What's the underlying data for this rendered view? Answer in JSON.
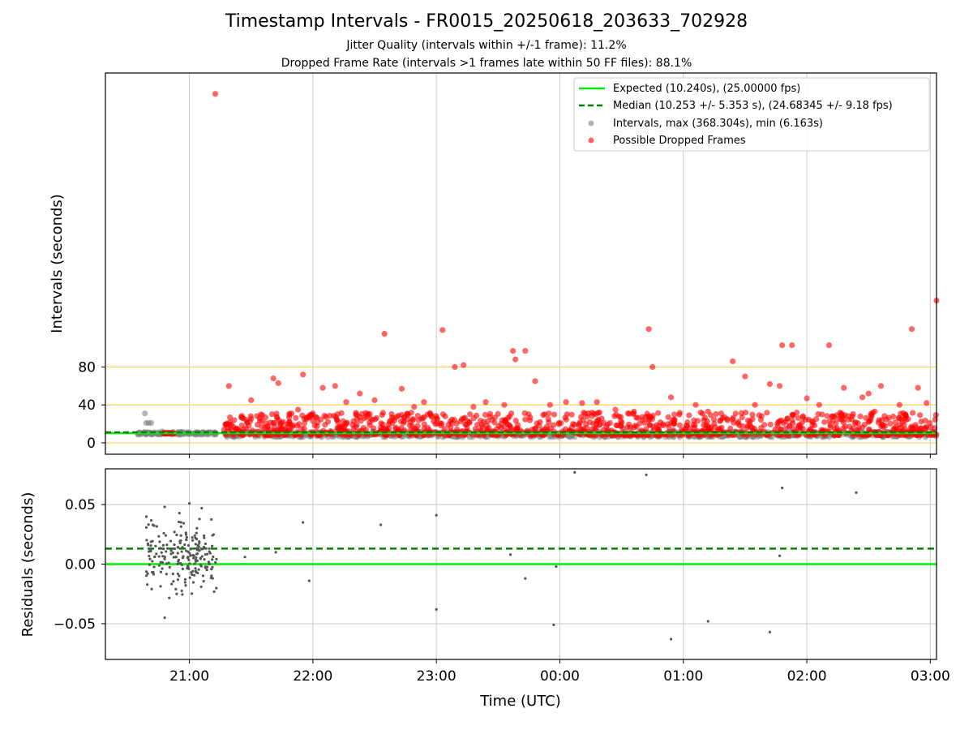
{
  "chart_data": [
    {
      "type": "scatter",
      "title": "Timestamp Intervals - FR0015_20250618_203633_702928",
      "subtitle_lines": [
        "Jitter Quality (intervals within +/-1 frame): 11.2%",
        "Dropped Frame Rate (intervals >1 frames late within 50 FF files): 88.1%"
      ],
      "ylabel": "Intervals (seconds)",
      "x_axis": "time (hours after 21:00 UTC)",
      "xlim": [
        -0.68,
        6.05
      ],
      "ylim": [
        -12,
        390
      ],
      "yticks": [
        0,
        40,
        80
      ],
      "reference_lines": {
        "orange_horizontal": [
          0,
          40,
          80
        ],
        "expected": 10.24,
        "median": 10.253
      },
      "legend": {
        "placement": "top-right",
        "entries": [
          "Expected (10.240s), (25.00000 fps)",
          "Median (10.253 +/- 5.353 s), (24.68345 +/- 9.18 fps)",
          "Intervals, max (368.304s), min (6.163s)",
          "Possible Dropped Frames"
        ]
      },
      "grid": "vertical",
      "series": [
        {
          "name": "Intervals, max (368.304s), min (6.163s)",
          "color": "#808080",
          "points": [
            [
              -0.36,
              31
            ],
            [
              -0.35,
              21
            ],
            [
              -0.33,
              21
            ],
            [
              -0.31,
              21
            ],
            [
              -0.3,
              10
            ],
            [
              -0.25,
              10
            ],
            [
              -0.22,
              12
            ],
            [
              -0.18,
              10
            ],
            [
              -0.1,
              10
            ],
            [
              -0.05,
              10
            ],
            [
              0.0,
              9
            ],
            [
              0.05,
              11
            ],
            [
              0.1,
              10
            ],
            [
              0.15,
              10
            ],
            [
              0.2,
              11
            ],
            [
              0.6,
              10
            ],
            [
              1.2,
              9
            ],
            [
              1.8,
              8
            ],
            [
              2.5,
              9
            ],
            [
              3.2,
              9
            ],
            [
              3.9,
              9
            ],
            [
              4.6,
              9
            ],
            [
              5.3,
              9
            ],
            [
              5.9,
              9
            ]
          ]
        },
        {
          "name": "Possible Dropped Frames",
          "color": "#ff0000",
          "points": [
            [
              0.21,
              368
            ],
            [
              0.32,
              60
            ],
            [
              0.42,
              27
            ],
            [
              0.5,
              45
            ],
            [
              0.58,
              30
            ],
            [
              0.68,
              68
            ],
            [
              0.72,
              63
            ],
            [
              0.88,
              35
            ],
            [
              0.92,
              72
            ],
            [
              1.0,
              23
            ],
            [
              1.08,
              58
            ],
            [
              1.18,
              60
            ],
            [
              1.27,
              43
            ],
            [
              1.38,
              52
            ],
            [
              1.5,
              45
            ],
            [
              1.58,
              115
            ],
            [
              1.72,
              57
            ],
            [
              1.82,
              38
            ],
            [
              1.9,
              43
            ],
            [
              2.05,
              119
            ],
            [
              2.15,
              80
            ],
            [
              2.22,
              82
            ],
            [
              2.3,
              38
            ],
            [
              2.4,
              43
            ],
            [
              2.55,
              40
            ],
            [
              2.62,
              97
            ],
            [
              2.64,
              88
            ],
            [
              2.72,
              97
            ],
            [
              2.8,
              65
            ],
            [
              2.92,
              40
            ],
            [
              3.05,
              43
            ],
            [
              3.18,
              42
            ],
            [
              3.3,
              43
            ],
            [
              3.45,
              35
            ],
            [
              3.6,
              33
            ],
            [
              3.72,
              120
            ],
            [
              3.75,
              80
            ],
            [
              3.9,
              48
            ],
            [
              4.1,
              40
            ],
            [
              4.2,
              33
            ],
            [
              4.4,
              86
            ],
            [
              4.5,
              70
            ],
            [
              4.58,
              40
            ],
            [
              4.7,
              62
            ],
            [
              4.78,
              60
            ],
            [
              4.8,
              103
            ],
            [
              4.88,
              103
            ],
            [
              5.0,
              47
            ],
            [
              5.1,
              40
            ],
            [
              5.18,
              103
            ],
            [
              5.3,
              58
            ],
            [
              5.45,
              48
            ],
            [
              5.55,
              33
            ],
            [
              5.75,
              40
            ],
            [
              5.9,
              58
            ],
            [
              5.97,
              42
            ],
            [
              6.05,
              150
            ],
            [
              5.85,
              120
            ],
            [
              5.6,
              60
            ],
            [
              5.5,
              52
            ]
          ]
        }
      ],
      "dense_band": {
        "x_range": [
          0.28,
          6.05
        ],
        "red_y_range": [
          8,
          32
        ],
        "gray_y_range": [
          6,
          12
        ]
      }
    },
    {
      "type": "scatter",
      "ylabel": "Residuals (seconds)",
      "xlabel": "Time (UTC)",
      "xlim": [
        -0.68,
        6.05
      ],
      "ylim": [
        -0.08,
        0.08
      ],
      "yticks": [
        -0.05,
        0.0,
        0.05
      ],
      "ytick_labels": [
        "−0.05",
        "0.00",
        "0.05"
      ],
      "xticks": [
        0,
        1,
        2,
        3,
        4,
        5,
        6
      ],
      "xtick_labels": [
        "21:00",
        "22:00",
        "23:00",
        "00:00",
        "01:00",
        "02:00",
        "03:00"
      ],
      "reference_lines": {
        "expected": 0.0,
        "median": 0.013
      },
      "grid": true,
      "cluster": {
        "x_range": [
          -0.35,
          0.22
        ],
        "y_range": [
          -0.035,
          0.05
        ]
      },
      "series": [
        {
          "name": "",
          "color": "#555555",
          "points": [
            [
              -0.2,
              -0.045
            ],
            [
              -0.2,
              0.048
            ],
            [
              0.0,
              0.051
            ],
            [
              0.1,
              0.047
            ],
            [
              0.45,
              0.006
            ],
            [
              0.7,
              0.01
            ],
            [
              0.92,
              0.035
            ],
            [
              0.97,
              -0.014
            ],
            [
              1.55,
              0.033
            ],
            [
              2.0,
              0.041
            ],
            [
              2.0,
              -0.038
            ],
            [
              2.6,
              0.008
            ],
            [
              2.72,
              -0.012
            ],
            [
              2.95,
              -0.051
            ],
            [
              2.97,
              -0.002
            ],
            [
              3.12,
              0.077
            ],
            [
              3.7,
              0.075
            ],
            [
              3.9,
              -0.063
            ],
            [
              4.2,
              -0.048
            ],
            [
              4.7,
              -0.057
            ],
            [
              4.78,
              0.007
            ],
            [
              4.8,
              0.064
            ],
            [
              5.4,
              0.06
            ]
          ]
        }
      ]
    }
  ],
  "colors": {
    "expected": "#00ee00",
    "median": "#008000",
    "orange_line": "#ffd36b",
    "grid": "#c8c8c8"
  }
}
